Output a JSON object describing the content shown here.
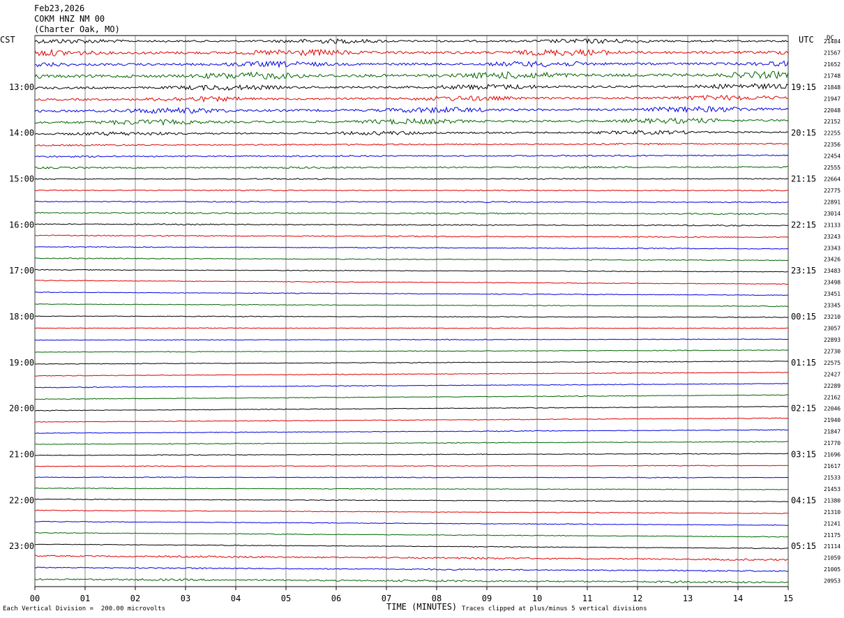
{
  "header": {
    "date": "Feb23,2026",
    "station": "COKM HNZ NM 00",
    "location": "(Charter Oak, MO)"
  },
  "left_axis_label": "CST",
  "right_axis_label": "UTC",
  "dc_label": "DC",
  "footer": {
    "scale_note": "Each Vertical Division =  200.00 microvolts",
    "xlabel": "TIME (MINUTES)",
    "clip_note": "Traces clipped at plus/minus 5 vertical divisions"
  },
  "chart_data": {
    "type": "line",
    "xlabel": "TIME (MINUTES)",
    "xlim": [
      0,
      15
    ],
    "x_ticks": [
      "00",
      "01",
      "02",
      "03",
      "04",
      "05",
      "06",
      "07",
      "08",
      "09",
      "10",
      "11",
      "12",
      "13",
      "14",
      "15"
    ],
    "left_time_labels": [
      "13:00",
      "14:00",
      "15:00",
      "16:00",
      "17:00",
      "18:00",
      "19:00",
      "20:00",
      "21:00",
      "22:00",
      "23:00"
    ],
    "right_time_labels": [
      "19:15",
      "20:15",
      "21:15",
      "22:15",
      "23:15",
      "00:15",
      "01:15",
      "02:15",
      "03:15",
      "04:15",
      "05:15"
    ],
    "trace_colors": [
      "#000000",
      "#e00000",
      "#0000e0",
      "#006400"
    ],
    "dc_values": [
      21484,
      21567,
      21652,
      21748,
      21848,
      21947,
      22048,
      22152,
      22255,
      22356,
      22454,
      22555,
      22664,
      22775,
      22891,
      23014,
      23133,
      23243,
      23343,
      23426,
      23483,
      23498,
      23451,
      23345,
      23210,
      23057,
      22893,
      22730,
      22575,
      22427,
      22289,
      22162,
      22046,
      21940,
      21847,
      21770,
      21696,
      21617,
      21533,
      21453,
      21380,
      21310,
      21241,
      21175,
      21114,
      21059,
      21005,
      20953
    ],
    "trace_activity": [
      1.3,
      1.8,
      1.6,
      2.0,
      1.5,
      1.4,
      1.6,
      1.5,
      1.1,
      0.8,
      0.8,
      0.9,
      0.6,
      0.6,
      0.6,
      0.7,
      0.6,
      0.6,
      0.5,
      0.5,
      0.4,
      0.4,
      0.4,
      0.4,
      0.4,
      0.4,
      0.4,
      0.4,
      0.4,
      0.4,
      0.4,
      0.4,
      0.4,
      0.4,
      0.4,
      0.4,
      0.4,
      0.4,
      0.4,
      0.4,
      0.4,
      0.4,
      0.4,
      0.4,
      0.4,
      0.9,
      0.7,
      1.0
    ]
  }
}
